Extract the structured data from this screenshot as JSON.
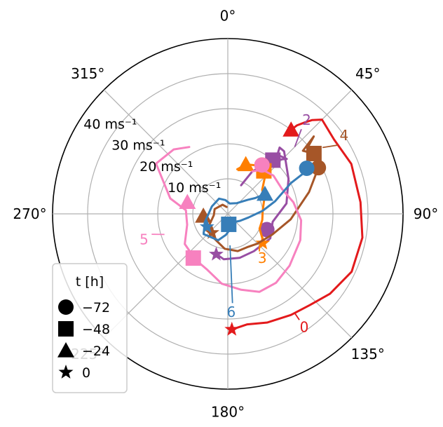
{
  "chart_data": {
    "type": "polar-line",
    "title": "",
    "angle_direction": "clockwise",
    "zero_location": "top",
    "angle_ticks": [
      "0°",
      "45°",
      "90°",
      "135°",
      "180°",
      "225°",
      "270°",
      "315°"
    ],
    "radial_ticks": [
      10,
      20,
      30,
      40,
      50
    ],
    "radial_tick_labels": [
      "10 ms⁻¹",
      "20 ms⁻¹",
      "30 ms⁻¹",
      "40 ms⁻¹"
    ],
    "rlim": [
      0,
      50
    ],
    "grid": true,
    "legend": {
      "placement": "lower-left",
      "title": "t [h]",
      "entries": [
        {
          "marker": "circle",
          "label": "−72"
        },
        {
          "marker": "square",
          "label": "−48"
        },
        {
          "marker": "triangle",
          "label": "−24"
        },
        {
          "marker": "star",
          "label": "0"
        }
      ]
    },
    "series": [
      {
        "name": "0",
        "color": "#e31a1c",
        "points": [
          [
            37,
            30
          ],
          [
            38,
            32
          ],
          [
            40,
            34
          ],
          [
            42,
            36
          ],
          [
            45,
            38
          ],
          [
            55,
            37
          ],
          [
            68,
            38
          ],
          [
            85,
            38
          ],
          [
            100,
            39
          ],
          [
            115,
            39
          ],
          [
            128,
            37
          ],
          [
            138,
            35
          ],
          [
            148,
            34
          ],
          [
            160,
            33
          ],
          [
            170,
            32
          ],
          [
            178,
            33
          ]
        ],
        "markers": {
          "circle": null,
          "square": null,
          "triangle": [
            37,
            30
          ],
          "star": [
            178,
            33
          ]
        },
        "label_at": [
          146,
          39
        ]
      },
      {
        "name": "2",
        "color": "#984ea3",
        "points": [
          [
            25,
            9
          ],
          [
            30,
            14
          ],
          [
            40,
            20
          ],
          [
            47,
            23
          ],
          [
            40,
            22
          ],
          [
            38,
            24
          ],
          [
            42,
            24
          ],
          [
            60,
            20
          ],
          [
            80,
            17
          ],
          [
            100,
            13
          ],
          [
            120,
            14
          ],
          [
            145,
            13
          ],
          [
            165,
            13
          ],
          [
            185,
            13
          ],
          [
            195,
            12
          ]
        ],
        "markers": {
          "circle": [
            112,
            12
          ],
          "square": [
            40,
            20
          ],
          "triangle": null,
          "star": [
            196,
            12
          ]
        },
        "label_at": [
          40,
          35
        ]
      },
      {
        "name": "3",
        "color": "#ff7f00",
        "points": [
          [
            12,
            13
          ],
          [
            20,
            15
          ],
          [
            30,
            16
          ],
          [
            35,
            17
          ],
          [
            40,
            16
          ],
          [
            45,
            15
          ],
          [
            55,
            12
          ],
          [
            70,
            11
          ],
          [
            85,
            10
          ],
          [
            100,
            10
          ],
          [
            115,
            10
          ],
          [
            125,
            12
          ],
          [
            130,
            13
          ]
        ],
        "markers": {
          "circle": [
            35,
            17
          ],
          "square": [
            40,
            16
          ],
          "triangle": [
            20,
            15
          ],
          "star": [
            130,
            13
          ]
        },
        "label_at": [
          142,
          16
        ]
      },
      {
        "name": "4",
        "color": "#a65628",
        "points": [
          [
            50,
            30
          ],
          [
            48,
            33
          ],
          [
            50,
            28
          ],
          [
            55,
            30
          ],
          [
            63,
            29
          ],
          [
            75,
            24
          ],
          [
            95,
            18
          ],
          [
            115,
            14
          ],
          [
            135,
            12
          ],
          [
            150,
            11
          ],
          [
            165,
            11
          ],
          [
            185,
            10
          ],
          [
            210,
            8
          ],
          [
            240,
            6
          ],
          [
            265,
            4
          ],
          [
            290,
            4
          ],
          [
            330,
            3
          ],
          [
            350,
            2
          ]
        ],
        "markers": {
          "circle": [
            63,
            29
          ],
          "square": [
            55,
            30
          ],
          "triangle": [
            265,
            7
          ],
          "star": [
            220,
            7
          ]
        },
        "label_at": [
          56,
          40
        ]
      },
      {
        "name": "5",
        "color": "#f781bf",
        "points": [
          [
            330,
            22
          ],
          [
            320,
            24
          ],
          [
            305,
            25
          ],
          [
            285,
            17
          ],
          [
            275,
            12
          ],
          [
            255,
            12
          ],
          [
            235,
            15
          ],
          [
            215,
            16
          ],
          [
            200,
            17
          ],
          [
            185,
            20
          ],
          [
            170,
            22
          ],
          [
            158,
            24
          ],
          [
            145,
            24
          ],
          [
            130,
            23
          ],
          [
            110,
            22
          ],
          [
            95,
            21
          ],
          [
            80,
            19
          ],
          [
            65,
            17
          ],
          [
            50,
            17
          ],
          [
            38,
            16
          ],
          [
            30,
            14
          ]
        ],
        "markers": {
          "circle": [
            35,
            17
          ],
          "square": [
            218,
            16
          ],
          "triangle": [
            286,
            12
          ],
          "star": null
        },
        "label_at": [
          253,
          25
        ]
      },
      {
        "name": "6",
        "color": "#377eb8",
        "points": [
          [
            60,
            26
          ],
          [
            62,
            24
          ],
          [
            64,
            20
          ],
          [
            75,
            14
          ],
          [
            85,
            10
          ],
          [
            100,
            6
          ],
          [
            120,
            4
          ],
          [
            140,
            3
          ],
          [
            165,
            4
          ],
          [
            185,
            6
          ],
          [
            200,
            8
          ],
          [
            230,
            9
          ],
          [
            250,
            7
          ],
          [
            295,
            5
          ],
          [
            330,
            5
          ],
          [
            350,
            4
          ],
          [
            10,
            3
          ],
          [
            40,
            4
          ],
          [
            55,
            7
          ],
          [
            60,
            9
          ],
          [
            62,
            12
          ],
          [
            70,
            12
          ]
        ],
        "markers": {
          "circle": [
            60,
            26
          ],
          "square": [
            175,
            3
          ],
          "triangle": [
            62,
            12
          ],
          "star": [
            238,
            7
          ]
        },
        "label_at": [
          178,
          28
        ]
      }
    ]
  }
}
